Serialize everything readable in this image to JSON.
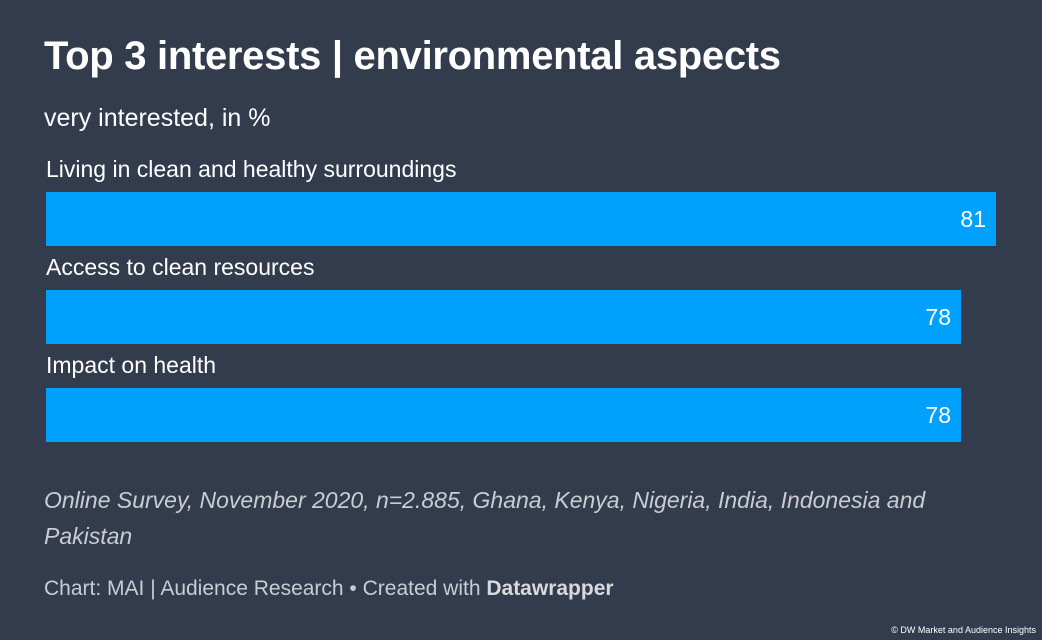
{
  "header": {
    "title": "Top 3 interests | environmental aspects",
    "subtitle": "very interested, in %"
  },
  "chart_data": {
    "type": "bar",
    "orientation": "horizontal",
    "categories": [
      "Living in clean and healthy surroundings",
      "Access to clean resources",
      "Impact on health"
    ],
    "values": [
      81,
      78,
      78
    ],
    "xlim": [
      0,
      81
    ],
    "grid": false,
    "bar_color": "#00a0ff",
    "title": "Top 3 interests | environmental aspects",
    "subtitle": "very interested, in %"
  },
  "footer": {
    "notes": "Online Survey, November 2020, n=2.885, Ghana, Kenya, Nigeria, India, Indonesia and Pakistan",
    "source_prefix": "Chart: MAI | Audience Research • Created with ",
    "source_tool": "Datawrapper",
    "copyright": "© DW Market and Audience Insights"
  },
  "colors": {
    "background": "#333c4c",
    "bar": "#00a0ff",
    "text": "#ffffff",
    "muted_text": "#c9ccd2"
  }
}
